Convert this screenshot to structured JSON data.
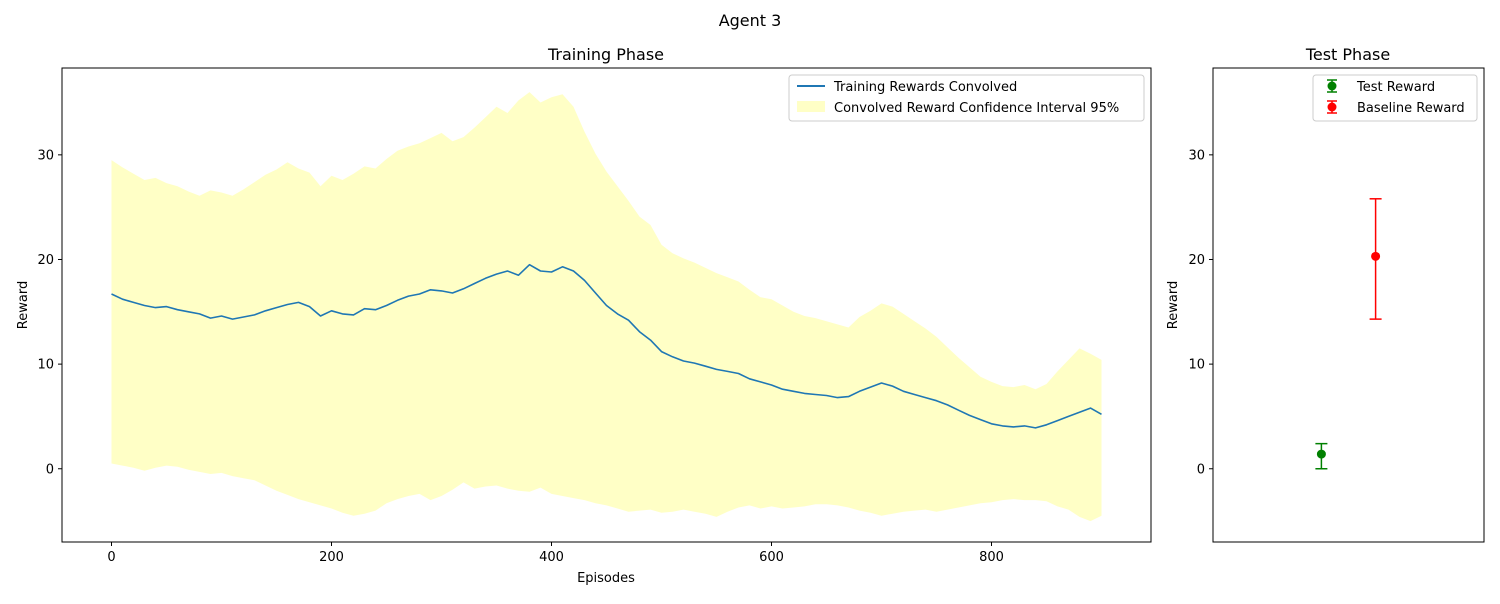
{
  "figure": {
    "suptitle": "Agent 3"
  },
  "colors": {
    "training_line": "#1f77b4",
    "confidence_fill": "#ffffb3",
    "test": "#008000",
    "baseline": "#ff0000"
  },
  "chart_data": [
    {
      "type": "line",
      "title": "Training Phase",
      "xlabel": "Episodes",
      "ylabel": "Reward",
      "xlim": [
        -45,
        945
      ],
      "ylim": [
        -7,
        38.3
      ],
      "xticks": [
        0,
        200,
        400,
        600,
        800
      ],
      "yticks": [
        0,
        10,
        20,
        30
      ],
      "grid": false,
      "legend_position": "top-right",
      "legend": [
        "Training Rewards Convolved",
        "Convolved Reward Confidence Interval 95%"
      ],
      "series": [
        {
          "name": "Training Rewards Convolved",
          "x": [
            0,
            10,
            20,
            30,
            40,
            50,
            60,
            70,
            80,
            90,
            100,
            110,
            120,
            130,
            140,
            150,
            160,
            170,
            180,
            190,
            200,
            210,
            220,
            230,
            240,
            250,
            260,
            270,
            280,
            290,
            300,
            310,
            320,
            330,
            340,
            350,
            360,
            370,
            380,
            390,
            400,
            410,
            420,
            430,
            440,
            450,
            460,
            470,
            480,
            490,
            500,
            510,
            520,
            530,
            540,
            550,
            560,
            570,
            580,
            590,
            600,
            610,
            620,
            630,
            640,
            650,
            660,
            670,
            680,
            690,
            700,
            710,
            720,
            730,
            740,
            750,
            760,
            770,
            780,
            790,
            800,
            810,
            820,
            830,
            840,
            850,
            860,
            870,
            880,
            890,
            900
          ],
          "y": [
            16.7,
            16.2,
            15.9,
            15.6,
            15.4,
            15.5,
            15.2,
            15.0,
            14.8,
            14.4,
            14.6,
            14.3,
            14.5,
            14.7,
            15.1,
            15.4,
            15.7,
            15.9,
            15.5,
            14.6,
            15.1,
            14.8,
            14.7,
            15.3,
            15.2,
            15.6,
            16.1,
            16.5,
            16.7,
            17.1,
            17.0,
            16.8,
            17.2,
            17.7,
            18.2,
            18.6,
            18.9,
            18.5,
            19.5,
            18.9,
            18.8,
            19.3,
            18.9,
            18.0,
            16.8,
            15.6,
            14.8,
            14.2,
            13.1,
            12.3,
            11.2,
            10.7,
            10.3,
            10.1,
            9.8,
            9.5,
            9.3,
            9.1,
            8.6,
            8.3,
            8.0,
            7.6,
            7.4,
            7.2,
            7.1,
            7.0,
            6.8,
            6.9,
            7.4,
            7.8,
            8.2,
            7.9,
            7.4,
            7.1,
            6.8,
            6.5,
            6.1,
            5.6,
            5.1,
            4.7,
            4.3,
            4.1,
            4.0,
            4.1,
            3.9,
            4.2,
            4.6,
            5.0,
            5.4,
            5.8,
            5.2
          ]
        },
        {
          "name": "Convolved Reward Confidence Interval 95%",
          "x": [
            0,
            10,
            20,
            30,
            40,
            50,
            60,
            70,
            80,
            90,
            100,
            110,
            120,
            130,
            140,
            150,
            160,
            170,
            180,
            190,
            200,
            210,
            220,
            230,
            240,
            250,
            260,
            270,
            280,
            290,
            300,
            310,
            320,
            330,
            340,
            350,
            360,
            370,
            380,
            390,
            400,
            410,
            420,
            430,
            440,
            450,
            460,
            470,
            480,
            490,
            500,
            510,
            520,
            530,
            540,
            550,
            560,
            570,
            580,
            590,
            600,
            610,
            620,
            630,
            640,
            650,
            660,
            670,
            680,
            690,
            700,
            710,
            720,
            730,
            740,
            750,
            760,
            770,
            780,
            790,
            800,
            810,
            820,
            830,
            840,
            850,
            860,
            870,
            880,
            890,
            900
          ],
          "upper": [
            29.5,
            28.8,
            28.2,
            27.6,
            27.8,
            27.3,
            27.0,
            26.5,
            26.1,
            26.6,
            26.4,
            26.1,
            26.7,
            27.4,
            28.1,
            28.6,
            29.3,
            28.7,
            28.3,
            27.0,
            28.0,
            27.6,
            28.2,
            28.9,
            28.7,
            29.6,
            30.4,
            30.8,
            31.1,
            31.6,
            32.1,
            31.3,
            31.7,
            32.6,
            33.6,
            34.6,
            34.0,
            35.2,
            36.0,
            35.0,
            35.5,
            35.8,
            34.6,
            32.2,
            30.1,
            28.4,
            27.0,
            25.6,
            24.1,
            23.3,
            21.4,
            20.6,
            20.1,
            19.7,
            19.2,
            18.7,
            18.3,
            17.9,
            17.1,
            16.4,
            16.2,
            15.6,
            15.0,
            14.6,
            14.4,
            14.1,
            13.8,
            13.5,
            14.5,
            15.1,
            15.8,
            15.5,
            14.8,
            14.1,
            13.4,
            12.6,
            11.6,
            10.6,
            9.7,
            8.8,
            8.3,
            7.9,
            7.8,
            8.0,
            7.6,
            8.1,
            9.3,
            10.4,
            11.5,
            11.0,
            10.4
          ],
          "lower": [
            0.5,
            0.3,
            0.1,
            -0.2,
            0.1,
            0.3,
            0.2,
            -0.1,
            -0.3,
            -0.5,
            -0.4,
            -0.7,
            -0.9,
            -1.1,
            -1.6,
            -2.1,
            -2.5,
            -2.9,
            -3.2,
            -3.5,
            -3.8,
            -4.2,
            -4.5,
            -4.3,
            -4.0,
            -3.3,
            -2.9,
            -2.6,
            -2.4,
            -3.0,
            -2.6,
            -2.0,
            -1.3,
            -1.9,
            -1.7,
            -1.6,
            -1.9,
            -2.1,
            -2.2,
            -1.8,
            -2.4,
            -2.6,
            -2.8,
            -3.0,
            -3.3,
            -3.5,
            -3.8,
            -4.1,
            -4.0,
            -3.9,
            -4.2,
            -4.1,
            -3.9,
            -4.1,
            -4.3,
            -4.6,
            -4.1,
            -3.7,
            -3.5,
            -3.8,
            -3.6,
            -3.8,
            -3.7,
            -3.6,
            -3.4,
            -3.4,
            -3.5,
            -3.7,
            -4.0,
            -4.2,
            -4.5,
            -4.3,
            -4.1,
            -4.0,
            -3.9,
            -4.1,
            -3.9,
            -3.7,
            -3.5,
            -3.3,
            -3.2,
            -3.0,
            -2.9,
            -3.0,
            -3.0,
            -3.1,
            -3.6,
            -3.9,
            -4.6,
            -5.0,
            -4.5
          ]
        }
      ]
    },
    {
      "type": "scatter",
      "title": "Test Phase",
      "xlabel": "",
      "ylabel": "Reward",
      "ylim": [
        -7,
        38.3
      ],
      "yticks": [
        0,
        10,
        20,
        30
      ],
      "xticks": [],
      "grid": false,
      "legend_position": "top-right",
      "legend": [
        "Test Reward",
        "Baseline Reward"
      ],
      "series": [
        {
          "name": "Test Reward",
          "value": 1.4,
          "error_low": 0.0,
          "error_high": 2.4,
          "color": "#008000"
        },
        {
          "name": "Baseline Reward",
          "value": 20.3,
          "error_low": 14.3,
          "error_high": 25.8,
          "color": "#ff0000"
        }
      ]
    }
  ]
}
